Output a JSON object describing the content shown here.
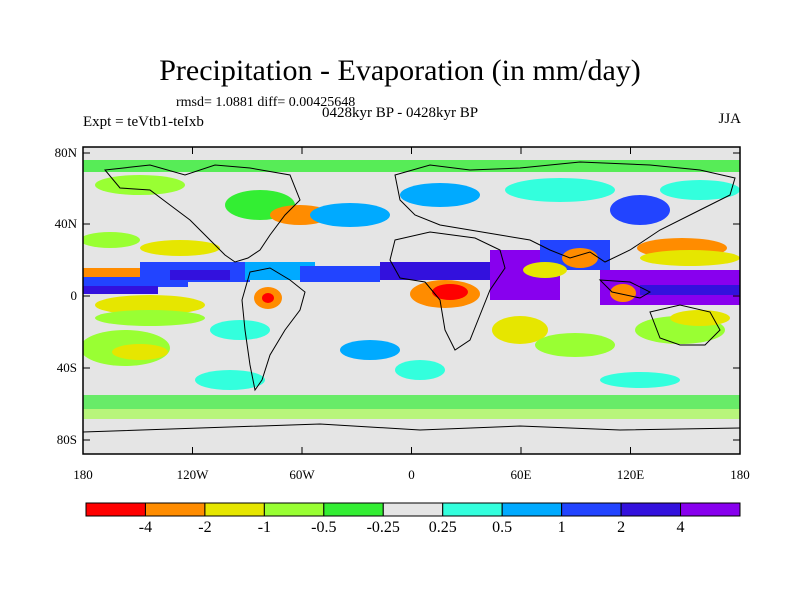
{
  "title": "Precipitation - Evaporation (in mm/day)",
  "stats_line": "rmsd= 1.0881 diff= 0.00425648",
  "period_line": "0428kyr BP - 0428kyr BP",
  "experiment_line": "Expt = teVtb1-teIxb",
  "season": "JJA",
  "lat_ticks": [
    "80N",
    "40N",
    "0",
    "40S",
    "80S"
  ],
  "lon_ticks": [
    "180",
    "120W",
    "60W",
    "0",
    "60E",
    "120E",
    "180"
  ],
  "colorbar": {
    "labels": [
      "-4",
      "-2",
      "-1",
      "-0.5",
      "-0.25",
      "0.25",
      "0.5",
      "1",
      "2",
      "4"
    ],
    "colors": [
      "#ff0000",
      "#ff8c00",
      "#e6e600",
      "#99ff33",
      "#33ee33",
      "#e5e5e5",
      "#33ffdd",
      "#00aaff",
      "#2244ff",
      "#3311dd",
      "#8800ee"
    ]
  },
  "map_background": "#e5e5e5"
}
